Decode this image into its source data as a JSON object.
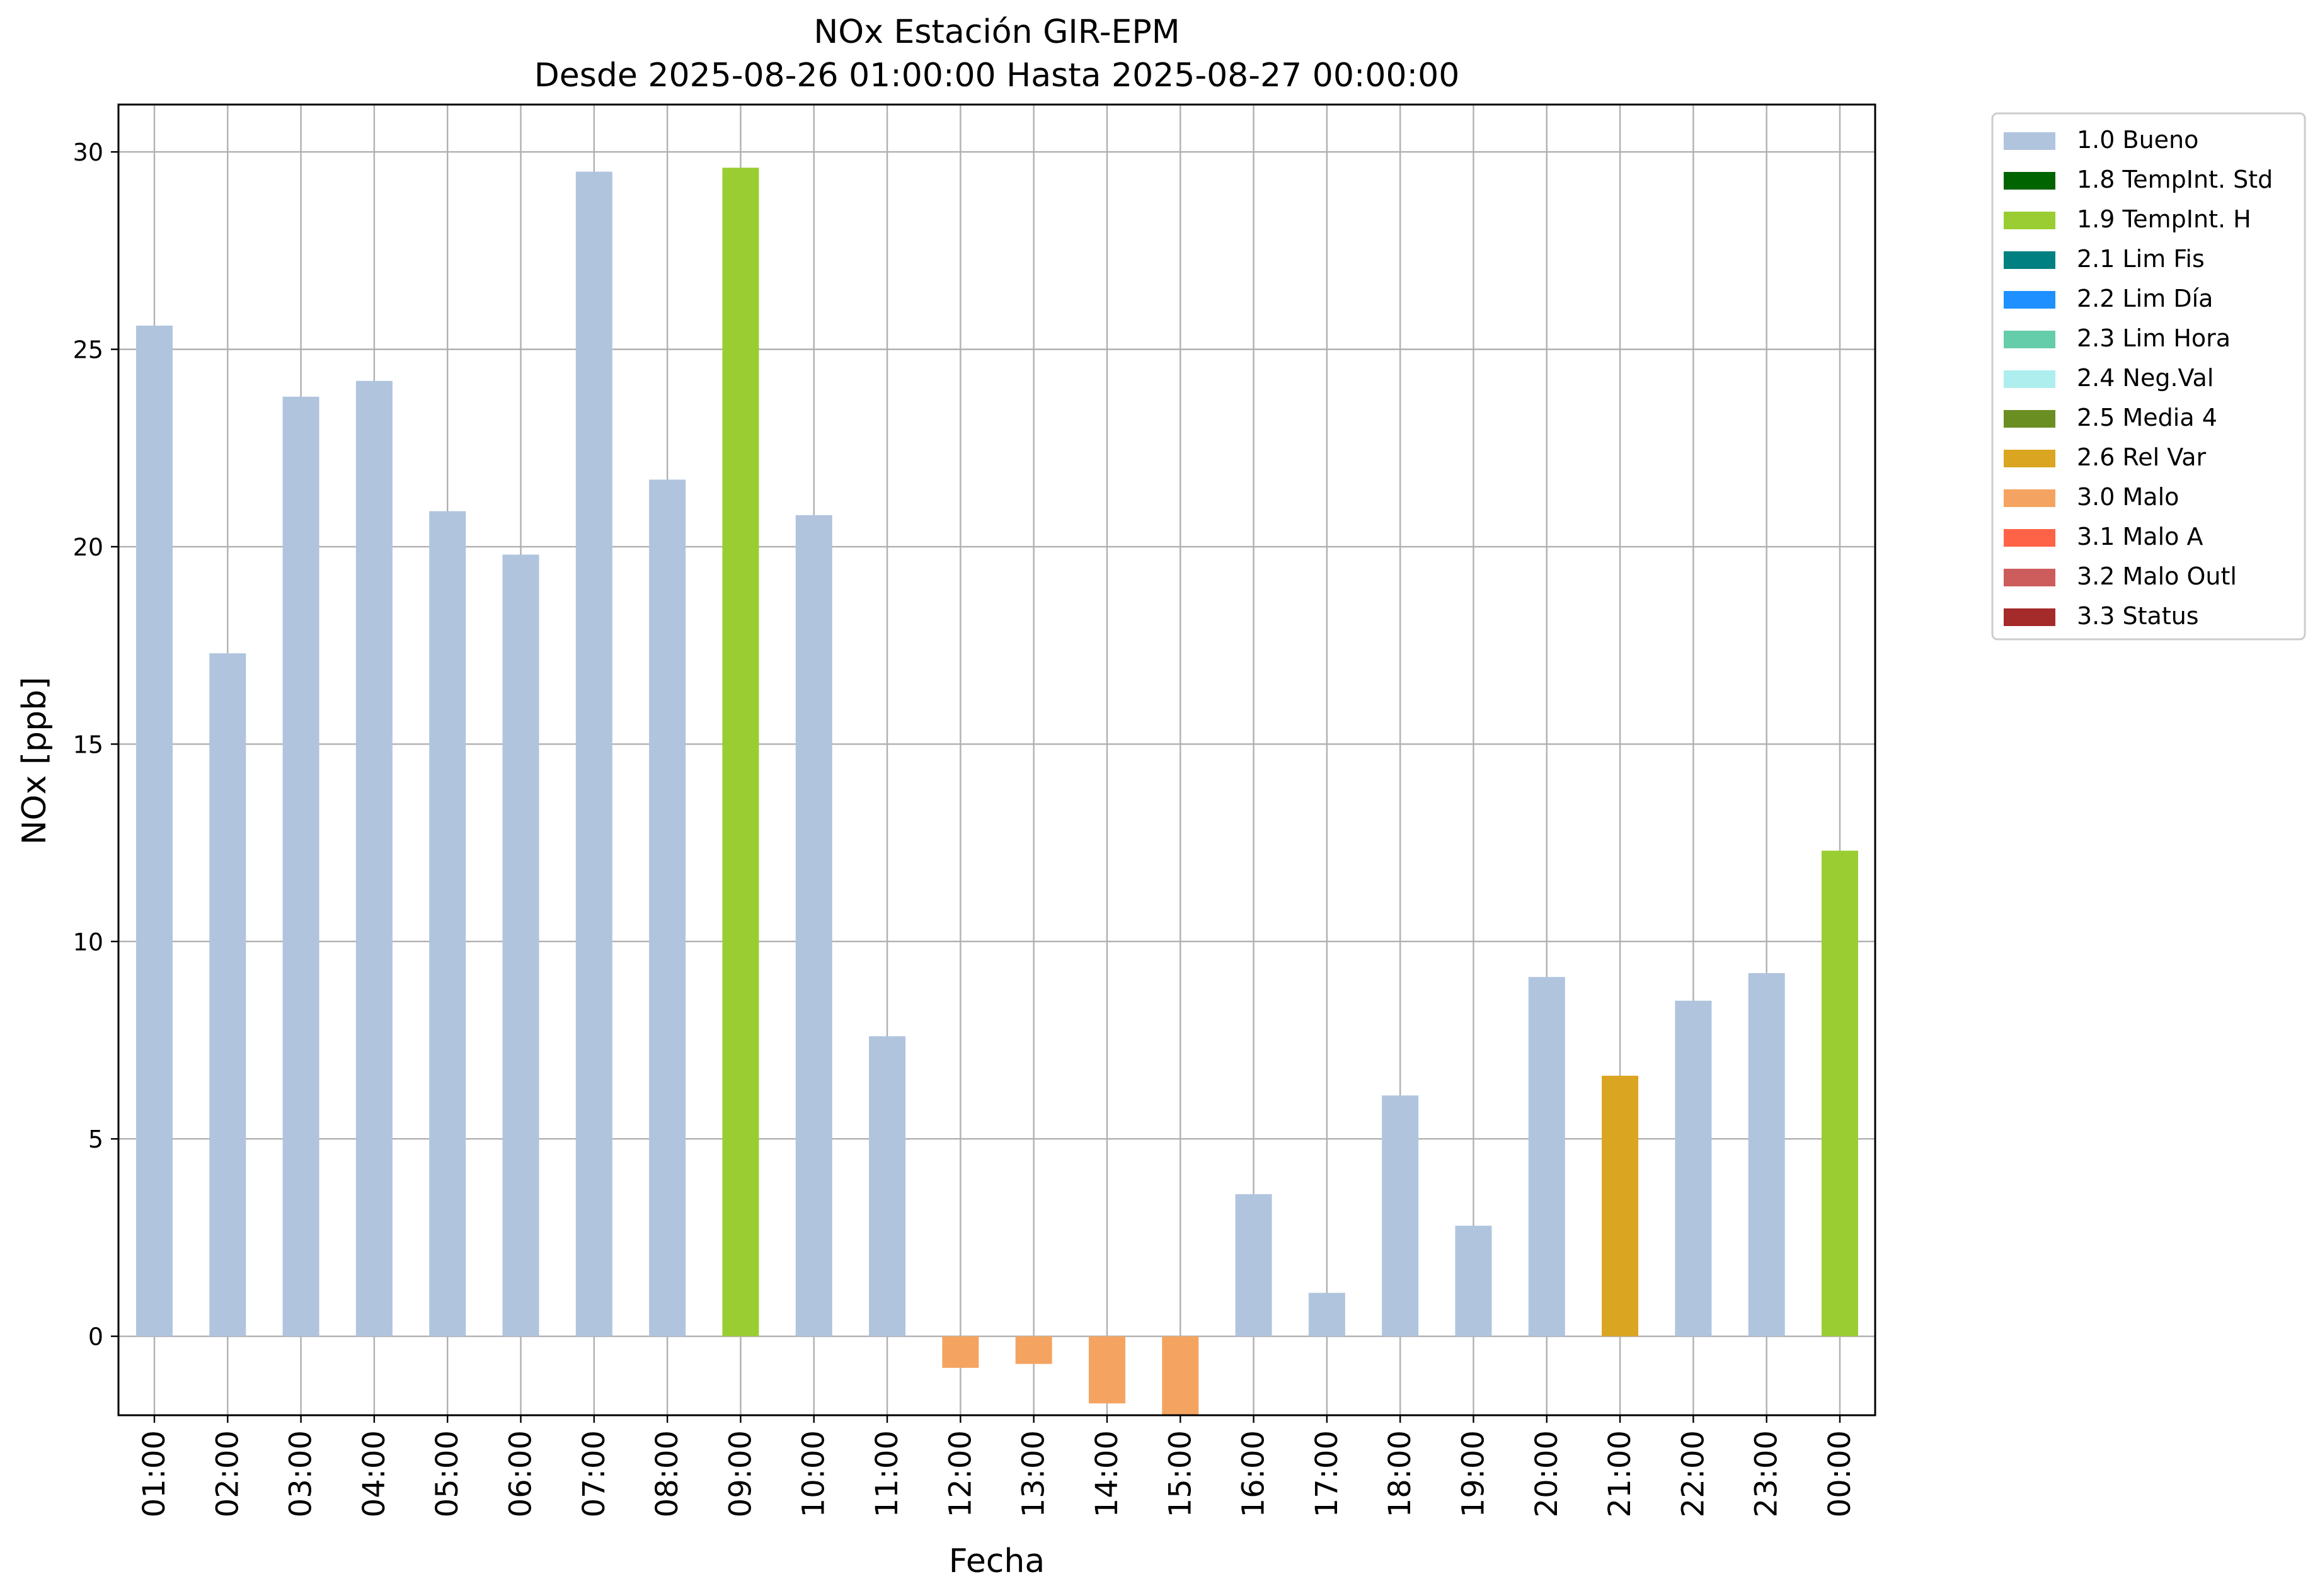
{
  "chart_data": {
    "type": "bar",
    "title": "NOx Estación GIR-EPM",
    "subtitle": "Desde 2025-08-26 01:00:00 Hasta 2025-08-27 00:00:00",
    "xlabel": "Fecha",
    "ylabel": "NOx [ppb]",
    "ylim": [
      -2.0,
      31.2
    ],
    "yticks": [
      0,
      5,
      10,
      15,
      20,
      25,
      30
    ],
    "grid": true,
    "legend_position": "outside-top-right",
    "categories": [
      "01:00",
      "02:00",
      "03:00",
      "04:00",
      "05:00",
      "06:00",
      "07:00",
      "08:00",
      "09:00",
      "10:00",
      "11:00",
      "12:00",
      "13:00",
      "14:00",
      "15:00",
      "16:00",
      "17:00",
      "18:00",
      "19:00",
      "20:00",
      "21:00",
      "22:00",
      "23:00",
      "00:00"
    ],
    "values": [
      25.6,
      17.3,
      23.8,
      24.2,
      20.9,
      19.8,
      29.5,
      21.7,
      29.6,
      20.8,
      7.6,
      -0.8,
      -0.7,
      -1.7,
      -2.0,
      3.6,
      1.1,
      6.1,
      2.8,
      9.1,
      6.6,
      8.5,
      9.2,
      12.3
    ],
    "flags": [
      "1.0 Bueno",
      "1.0 Bueno",
      "1.0 Bueno",
      "1.0 Bueno",
      "1.0 Bueno",
      "1.0 Bueno",
      "1.0 Bueno",
      "1.0 Bueno",
      "1.9 TempInt. H",
      "1.0 Bueno",
      "1.0 Bueno",
      "3.0 Malo",
      "3.0 Malo",
      "3.0 Malo",
      "3.0 Malo",
      "1.0 Bueno",
      "1.0 Bueno",
      "1.0 Bueno",
      "1.0 Bueno",
      "1.0 Bueno",
      "2.6 Rel Var",
      "1.0 Bueno",
      "1.0 Bueno",
      "1.9 TempInt. H"
    ],
    "legend": [
      {
        "label": "1.0 Bueno",
        "color": "#b0c4de"
      },
      {
        "label": "1.8 TempInt. Std",
        "color": "#006400"
      },
      {
        "label": "1.9 TempInt. H",
        "color": "#9acd32"
      },
      {
        "label": "2.1 Lim Fis",
        "color": "#008080"
      },
      {
        "label": "2.2 Lim Día",
        "color": "#1e90ff"
      },
      {
        "label": "2.3 Lim Hora",
        "color": "#66cdaa"
      },
      {
        "label": "2.4 Neg.Val",
        "color": "#afeeee"
      },
      {
        "label": "2.5 Media 4",
        "color": "#6b8e23"
      },
      {
        "label": "2.6 Rel Var",
        "color": "#daa520"
      },
      {
        "label": "3.0 Malo",
        "color": "#f4a460"
      },
      {
        "label": "3.1 Malo A",
        "color": "#ff6347"
      },
      {
        "label": "3.2 Malo Outl",
        "color": "#cd5c5c"
      },
      {
        "label": "3.3 Status",
        "color": "#a52a2a"
      }
    ]
  }
}
